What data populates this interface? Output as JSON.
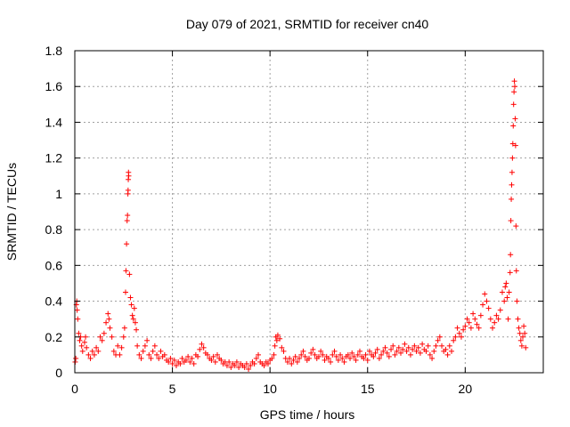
{
  "chart_data": {
    "type": "scatter",
    "title": "Day 079 of 2021, SRMTID for receiver cn40",
    "xlabel": "GPS time / hours",
    "ylabel": "SRMTID / TECUs",
    "xlim": [
      0,
      24
    ],
    "ylim": [
      0,
      1.8
    ],
    "xticks": [
      0,
      5,
      10,
      15,
      20
    ],
    "xtick_labels": [
      "0",
      "5",
      "10",
      "15",
      "20"
    ],
    "yticks": [
      0,
      0.2,
      0.4,
      0.6,
      0.8,
      1,
      1.2,
      1.4,
      1.6,
      1.8
    ],
    "ytick_labels": [
      "0",
      "0.2",
      "0.4",
      "0.6",
      "0.8",
      "1",
      "1.2",
      "1.4",
      "1.6",
      "1.8"
    ],
    "grid": true,
    "marker": "+",
    "color": "#ff0000",
    "series": [
      {
        "name": "SRMTID",
        "points": [
          [
            0.02,
            0.06
          ],
          [
            0.05,
            0.08
          ],
          [
            0.08,
            0.38
          ],
          [
            0.1,
            0.4
          ],
          [
            0.12,
            0.35
          ],
          [
            0.15,
            0.3
          ],
          [
            0.2,
            0.22
          ],
          [
            0.25,
            0.18
          ],
          [
            0.3,
            0.2
          ],
          [
            0.35,
            0.15
          ],
          [
            0.4,
            0.12
          ],
          [
            0.5,
            0.17
          ],
          [
            0.55,
            0.2
          ],
          [
            0.6,
            0.14
          ],
          [
            0.7,
            0.1
          ],
          [
            0.8,
            0.08
          ],
          [
            0.9,
            0.12
          ],
          [
            1.0,
            0.1
          ],
          [
            1.1,
            0.14
          ],
          [
            1.2,
            0.12
          ],
          [
            1.3,
            0.2
          ],
          [
            1.4,
            0.18
          ],
          [
            1.5,
            0.22
          ],
          [
            1.6,
            0.28
          ],
          [
            1.7,
            0.33
          ],
          [
            1.75,
            0.3
          ],
          [
            1.8,
            0.25
          ],
          [
            1.9,
            0.2
          ],
          [
            2.0,
            0.12
          ],
          [
            2.1,
            0.1
          ],
          [
            2.2,
            0.15
          ],
          [
            2.3,
            0.1
          ],
          [
            2.4,
            0.14
          ],
          [
            2.5,
            0.2
          ],
          [
            2.55,
            0.25
          ],
          [
            2.6,
            0.45
          ],
          [
            2.62,
            0.57
          ],
          [
            2.65,
            0.72
          ],
          [
            2.68,
            0.85
          ],
          [
            2.7,
            0.88
          ],
          [
            2.72,
            1.0
          ],
          [
            2.73,
            1.02
          ],
          [
            2.74,
            1.08
          ],
          [
            2.75,
            1.12
          ],
          [
            2.76,
            1.1
          ],
          [
            2.8,
            0.55
          ],
          [
            2.85,
            0.42
          ],
          [
            2.9,
            0.38
          ],
          [
            2.95,
            0.32
          ],
          [
            3.0,
            0.3
          ],
          [
            3.05,
            0.36
          ],
          [
            3.1,
            0.28
          ],
          [
            3.15,
            0.24
          ],
          [
            3.2,
            0.15
          ],
          [
            3.3,
            0.1
          ],
          [
            3.4,
            0.08
          ],
          [
            3.5,
            0.12
          ],
          [
            3.6,
            0.15
          ],
          [
            3.7,
            0.18
          ],
          [
            3.8,
            0.1
          ],
          [
            3.9,
            0.08
          ],
          [
            4.0,
            0.12
          ],
          [
            4.1,
            0.15
          ],
          [
            4.2,
            0.1
          ],
          [
            4.3,
            0.08
          ],
          [
            4.4,
            0.12
          ],
          [
            4.5,
            0.09
          ],
          [
            4.6,
            0.1
          ],
          [
            4.7,
            0.07
          ],
          [
            4.8,
            0.06
          ],
          [
            4.9,
            0.08
          ],
          [
            5.0,
            0.05
          ],
          [
            5.1,
            0.07
          ],
          [
            5.2,
            0.04
          ],
          [
            5.3,
            0.06
          ],
          [
            5.4,
            0.05
          ],
          [
            5.5,
            0.08
          ],
          [
            5.6,
            0.06
          ],
          [
            5.7,
            0.07
          ],
          [
            5.8,
            0.09
          ],
          [
            5.9,
            0.06
          ],
          [
            6.0,
            0.08
          ],
          [
            6.1,
            0.05
          ],
          [
            6.2,
            0.1
          ],
          [
            6.3,
            0.09
          ],
          [
            6.4,
            0.13
          ],
          [
            6.5,
            0.16
          ],
          [
            6.6,
            0.14
          ],
          [
            6.7,
            0.11
          ],
          [
            6.8,
            0.1
          ],
          [
            6.9,
            0.08
          ],
          [
            7.0,
            0.07
          ],
          [
            7.1,
            0.09
          ],
          [
            7.2,
            0.06
          ],
          [
            7.3,
            0.1
          ],
          [
            7.4,
            0.08
          ],
          [
            7.5,
            0.07
          ],
          [
            7.6,
            0.05
          ],
          [
            7.7,
            0.06
          ],
          [
            7.8,
            0.04
          ],
          [
            7.9,
            0.06
          ],
          [
            8.0,
            0.03
          ],
          [
            8.1,
            0.05
          ],
          [
            8.2,
            0.04
          ],
          [
            8.3,
            0.06
          ],
          [
            8.4,
            0.03
          ],
          [
            8.5,
            0.05
          ],
          [
            8.6,
            0.04
          ],
          [
            8.7,
            0.03
          ],
          [
            8.8,
            0.05
          ],
          [
            8.9,
            0.02
          ],
          [
            9.0,
            0.04
          ],
          [
            9.1,
            0.06
          ],
          [
            9.2,
            0.05
          ],
          [
            9.3,
            0.08
          ],
          [
            9.4,
            0.1
          ],
          [
            9.5,
            0.06
          ],
          [
            9.6,
            0.05
          ],
          [
            9.7,
            0.04
          ],
          [
            9.8,
            0.06
          ],
          [
            9.9,
            0.05
          ],
          [
            10.0,
            0.07
          ],
          [
            10.1,
            0.08
          ],
          [
            10.2,
            0.1
          ],
          [
            10.25,
            0.15
          ],
          [
            10.3,
            0.2
          ],
          [
            10.35,
            0.18
          ],
          [
            10.4,
            0.21
          ],
          [
            10.5,
            0.19
          ],
          [
            10.6,
            0.14
          ],
          [
            10.7,
            0.12
          ],
          [
            10.8,
            0.08
          ],
          [
            10.9,
            0.06
          ],
          [
            11.0,
            0.08
          ],
          [
            11.1,
            0.05
          ],
          [
            11.2,
            0.07
          ],
          [
            11.3,
            0.09
          ],
          [
            11.4,
            0.06
          ],
          [
            11.5,
            0.08
          ],
          [
            11.6,
            0.1
          ],
          [
            11.7,
            0.12
          ],
          [
            11.8,
            0.09
          ],
          [
            11.9,
            0.07
          ],
          [
            12.0,
            0.08
          ],
          [
            12.1,
            0.11
          ],
          [
            12.2,
            0.13
          ],
          [
            12.3,
            0.1
          ],
          [
            12.4,
            0.08
          ],
          [
            12.5,
            0.09
          ],
          [
            12.6,
            0.12
          ],
          [
            12.7,
            0.1
          ],
          [
            12.8,
            0.07
          ],
          [
            12.9,
            0.09
          ],
          [
            13.0,
            0.08
          ],
          [
            13.1,
            0.06
          ],
          [
            13.2,
            0.1
          ],
          [
            13.3,
            0.12
          ],
          [
            13.4,
            0.09
          ],
          [
            13.5,
            0.07
          ],
          [
            13.6,
            0.1
          ],
          [
            13.7,
            0.08
          ],
          [
            13.8,
            0.06
          ],
          [
            13.9,
            0.09
          ],
          [
            14.0,
            0.1
          ],
          [
            14.1,
            0.08
          ],
          [
            14.2,
            0.11
          ],
          [
            14.3,
            0.09
          ],
          [
            14.4,
            0.07
          ],
          [
            14.5,
            0.1
          ],
          [
            14.6,
            0.12
          ],
          [
            14.7,
            0.09
          ],
          [
            14.8,
            0.08
          ],
          [
            14.9,
            0.1
          ],
          [
            15.0,
            0.07
          ],
          [
            15.1,
            0.12
          ],
          [
            15.2,
            0.1
          ],
          [
            15.3,
            0.09
          ],
          [
            15.4,
            0.11
          ],
          [
            15.5,
            0.13
          ],
          [
            15.6,
            0.08
          ],
          [
            15.7,
            0.1
          ],
          [
            15.8,
            0.12
          ],
          [
            15.9,
            0.14
          ],
          [
            16.0,
            0.11
          ],
          [
            16.1,
            0.09
          ],
          [
            16.2,
            0.13
          ],
          [
            16.3,
            0.15
          ],
          [
            16.4,
            0.1
          ],
          [
            16.5,
            0.12
          ],
          [
            16.6,
            0.14
          ],
          [
            16.7,
            0.11
          ],
          [
            16.8,
            0.13
          ],
          [
            16.9,
            0.16
          ],
          [
            17.0,
            0.12
          ],
          [
            17.1,
            0.14
          ],
          [
            17.2,
            0.1
          ],
          [
            17.3,
            0.13
          ],
          [
            17.4,
            0.15
          ],
          [
            17.5,
            0.12
          ],
          [
            17.6,
            0.14
          ],
          [
            17.7,
            0.11
          ],
          [
            17.8,
            0.16
          ],
          [
            17.9,
            0.13
          ],
          [
            18.0,
            0.12
          ],
          [
            18.1,
            0.15
          ],
          [
            18.2,
            0.1
          ],
          [
            18.3,
            0.08
          ],
          [
            18.4,
            0.12
          ],
          [
            18.5,
            0.15
          ],
          [
            18.6,
            0.18
          ],
          [
            18.7,
            0.2
          ],
          [
            18.8,
            0.15
          ],
          [
            18.9,
            0.12
          ],
          [
            19.0,
            0.13
          ],
          [
            19.1,
            0.1
          ],
          [
            19.2,
            0.15
          ],
          [
            19.3,
            0.12
          ],
          [
            19.4,
            0.18
          ],
          [
            19.5,
            0.2
          ],
          [
            19.6,
            0.25
          ],
          [
            19.7,
            0.22
          ],
          [
            19.8,
            0.2
          ],
          [
            19.9,
            0.24
          ],
          [
            20.0,
            0.26
          ],
          [
            20.1,
            0.3
          ],
          [
            20.2,
            0.28
          ],
          [
            20.3,
            0.25
          ],
          [
            20.4,
            0.33
          ],
          [
            20.5,
            0.3
          ],
          [
            20.6,
            0.27
          ],
          [
            20.7,
            0.25
          ],
          [
            20.8,
            0.32
          ],
          [
            20.9,
            0.38
          ],
          [
            21.0,
            0.44
          ],
          [
            21.1,
            0.4
          ],
          [
            21.2,
            0.36
          ],
          [
            21.3,
            0.3
          ],
          [
            21.4,
            0.25
          ],
          [
            21.5,
            0.28
          ],
          [
            21.6,
            0.32
          ],
          [
            21.7,
            0.3
          ],
          [
            21.8,
            0.35
          ],
          [
            21.9,
            0.45
          ],
          [
            22.0,
            0.4
          ],
          [
            22.05,
            0.48
          ],
          [
            22.1,
            0.5
          ],
          [
            22.15,
            0.42
          ],
          [
            22.2,
            0.3
          ],
          [
            22.25,
            0.45
          ],
          [
            22.3,
            0.56
          ],
          [
            22.32,
            0.66
          ],
          [
            22.34,
            0.85
          ],
          [
            22.36,
            0.97
          ],
          [
            22.38,
            1.05
          ],
          [
            22.4,
            1.12
          ],
          [
            22.42,
            1.2
          ],
          [
            22.44,
            1.28
          ],
          [
            22.46,
            1.38
          ],
          [
            22.48,
            1.5
          ],
          [
            22.5,
            1.57
          ],
          [
            22.52,
            1.63
          ],
          [
            22.54,
            1.6
          ],
          [
            22.56,
            1.42
          ],
          [
            22.58,
            1.27
          ],
          [
            22.6,
            0.82
          ],
          [
            22.62,
            0.57
          ],
          [
            22.65,
            0.4
          ],
          [
            22.7,
            0.3
          ],
          [
            22.75,
            0.25
          ],
          [
            22.8,
            0.22
          ],
          [
            22.85,
            0.18
          ],
          [
            22.9,
            0.15
          ],
          [
            22.95,
            0.2
          ],
          [
            23.0,
            0.26
          ],
          [
            23.05,
            0.22
          ],
          [
            23.1,
            0.14
          ]
        ]
      }
    ]
  }
}
